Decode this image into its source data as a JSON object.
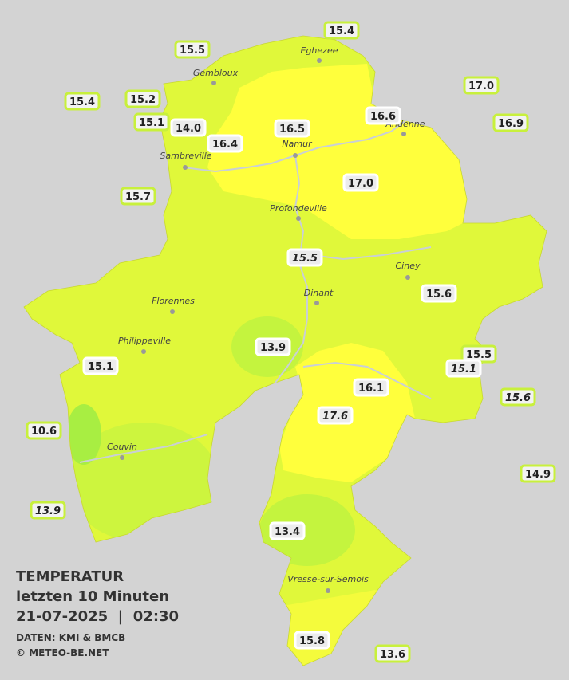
{
  "legend": {
    "title": "TEMPERATUR",
    "subtitle": "letzten 10 Minuten",
    "datetime": "21-07-2025  |  02:30",
    "source": "DATEN: KMI & BMCB",
    "copyright": "© METEO-BE.NET"
  },
  "cities": [
    "Eghezee",
    "Gembloux",
    "Andenne",
    "Namur",
    "Sambreville",
    "Profondeville",
    "Ciney",
    "Dinant",
    "Florennes",
    "Philippeville",
    "Couvin",
    "Vresse-sur-Semois"
  ],
  "stations": [
    "15.4",
    "15.5",
    "17.0",
    "15.4",
    "15.2",
    "16.6",
    "15.1",
    "14.0",
    "16.9",
    "16.5",
    "16.4",
    "17.0",
    "15.7",
    "15.5",
    "15.6",
    "13.9",
    "15.5",
    "15.1",
    "15.1",
    "16.1",
    "15.6",
    "17.6",
    "10.6",
    "14.9",
    "13.9",
    "13.4",
    "15.8",
    "13.6"
  ]
}
